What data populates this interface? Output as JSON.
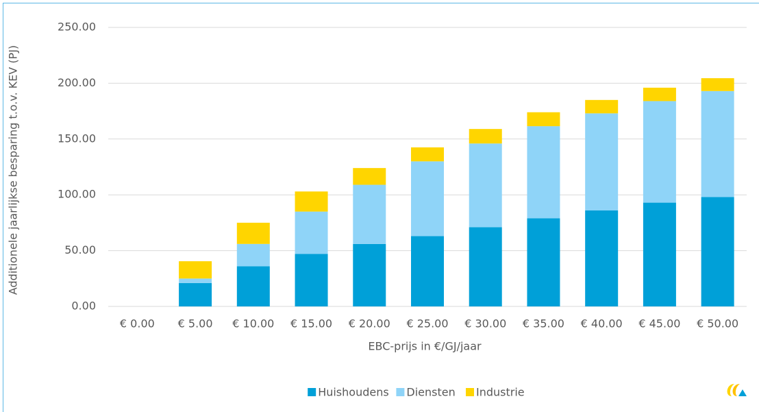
{
  "chart_data": {
    "type": "stacked_bar",
    "x_label": "EBC-prijs in €/GJ/jaar",
    "y_label": "Additionele jaarlijkse besparing t.o.v. KEV (PJ)",
    "categories": [
      "€ 0.00",
      "€ 5.00",
      "€ 10.00",
      "€ 15.00",
      "€ 20.00",
      "€ 25.00",
      "€ 30.00",
      "€ 35.00",
      "€ 40.00",
      "€ 45.00",
      "€ 50.00"
    ],
    "series": [
      {
        "name": "Huishoudens",
        "color": "#00a0d8",
        "values": [
          0,
          21,
          36,
          47,
          56,
          63,
          71,
          79,
          86,
          93,
          98
        ]
      },
      {
        "name": "Diensten",
        "color": "#8fd4f8",
        "values": [
          0,
          4,
          20,
          38,
          53,
          67,
          75,
          82.5,
          87,
          91,
          95
        ]
      },
      {
        "name": "Industrie",
        "color": "#ffd500",
        "values": [
          0,
          15.5,
          19,
          18,
          15,
          12.5,
          13,
          12.5,
          12,
          12,
          11.5
        ]
      }
    ],
    "ylim": [
      0,
      250
    ],
    "yticks": [
      {
        "value": 0,
        "label": "0.00"
      },
      {
        "value": 50,
        "label": "50.00"
      },
      {
        "value": 100,
        "label": "100.00"
      },
      {
        "value": 150,
        "label": "150.00"
      },
      {
        "value": 200,
        "label": "200.00"
      },
      {
        "value": 250,
        "label": "250.00"
      }
    ],
    "grid": true,
    "legend": "bottom"
  }
}
